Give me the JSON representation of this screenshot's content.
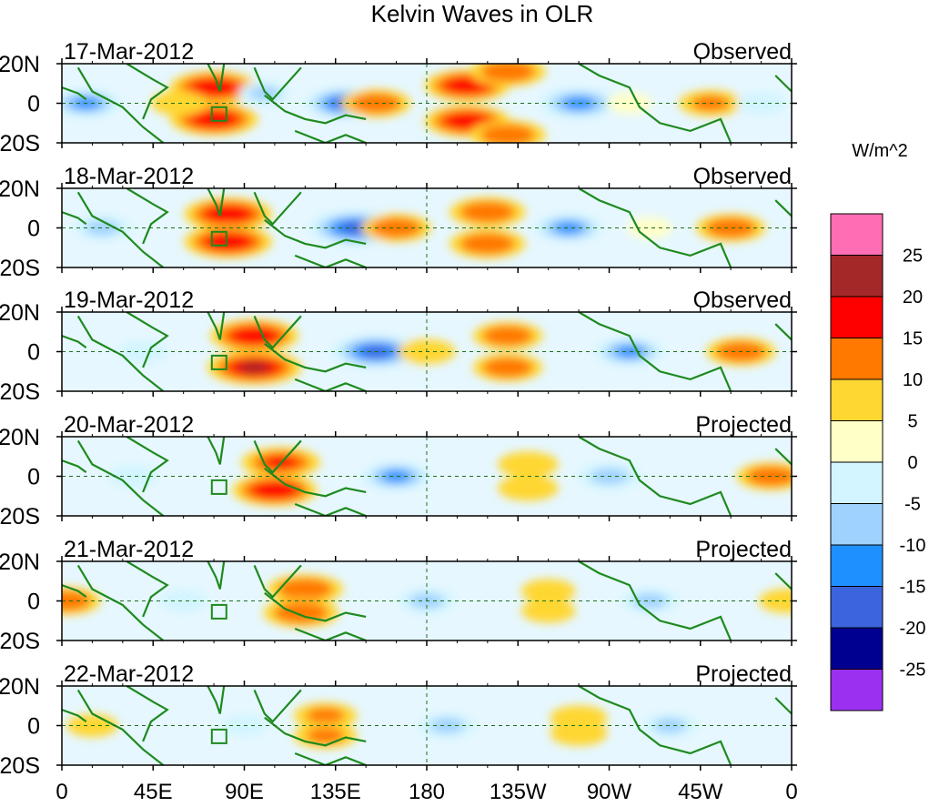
{
  "chart_data": {
    "type": "heatmap",
    "title": "Kelvin Waves in OLR",
    "units": "W/m^2",
    "xlabel": "",
    "ylabel": "",
    "x_ticks": [
      "0",
      "45E",
      "90E",
      "135E",
      "180",
      "135W",
      "90W",
      "45W",
      "0"
    ],
    "y_ticks": [
      "20N",
      "0",
      "20S"
    ],
    "xlim": [
      0,
      360
    ],
    "ylim": [
      -20,
      20
    ],
    "reference_lines": [
      "equator (0)",
      "dateline (180)"
    ],
    "colorbar": {
      "levels": [
        -25,
        -20,
        -15,
        -10,
        -5,
        0,
        5,
        10,
        15,
        20,
        25
      ],
      "tick_labels": [
        "25",
        "20",
        "15",
        "10",
        "5",
        "0",
        "-5",
        "-10",
        "-15",
        "-20",
        "-25"
      ],
      "colors": [
        "#9b30f0",
        "#000090",
        "#3c64dc",
        "#1e90ff",
        "#a0d2ff",
        "#d2f5ff",
        "#ffffc8",
        "#ffd732",
        "#ff7800",
        "#ff0000",
        "#a52828",
        "#ff6eb4"
      ]
    },
    "panels": [
      {
        "date": "17-Mar-2012",
        "status": "Observed",
        "features": [
          {
            "lon": 75,
            "lat": 8,
            "value": 18
          },
          {
            "lon": 75,
            "lat": -8,
            "value": 18
          },
          {
            "lon": 58,
            "lat": 0,
            "value": 8
          },
          {
            "lon": 12,
            "lat": 0,
            "value": -12
          },
          {
            "lon": 100,
            "lat": 5,
            "value": -6
          },
          {
            "lon": 140,
            "lat": 0,
            "value": -16
          },
          {
            "lon": 155,
            "lat": 0,
            "value": 12
          },
          {
            "lon": 200,
            "lat": 9,
            "value": 17
          },
          {
            "lon": 200,
            "lat": -9,
            "value": 17
          },
          {
            "lon": 220,
            "lat": 16,
            "value": 14
          },
          {
            "lon": 220,
            "lat": -16,
            "value": 14
          },
          {
            "lon": 255,
            "lat": 0,
            "value": -15
          },
          {
            "lon": 280,
            "lat": 0,
            "value": 4
          },
          {
            "lon": 320,
            "lat": 0,
            "value": 10
          },
          {
            "lon": 345,
            "lat": 0,
            "value": -5
          }
        ]
      },
      {
        "date": "18-Mar-2012",
        "status": "Observed",
        "features": [
          {
            "lon": 82,
            "lat": 7,
            "value": 18
          },
          {
            "lon": 82,
            "lat": -7,
            "value": 18
          },
          {
            "lon": 20,
            "lat": 0,
            "value": -8
          },
          {
            "lon": 145,
            "lat": 0,
            "value": -20
          },
          {
            "lon": 165,
            "lat": 0,
            "value": 12
          },
          {
            "lon": 210,
            "lat": 8,
            "value": 14
          },
          {
            "lon": 210,
            "lat": -8,
            "value": 14
          },
          {
            "lon": 250,
            "lat": 0,
            "value": -12
          },
          {
            "lon": 290,
            "lat": 0,
            "value": 4
          },
          {
            "lon": 330,
            "lat": 0,
            "value": 12
          }
        ]
      },
      {
        "date": "19-Mar-2012",
        "status": "Observed",
        "features": [
          {
            "lon": 95,
            "lat": 8,
            "value": 18
          },
          {
            "lon": 95,
            "lat": -8,
            "value": 20
          },
          {
            "lon": 40,
            "lat": 0,
            "value": -5
          },
          {
            "lon": 155,
            "lat": 0,
            "value": -18
          },
          {
            "lon": 180,
            "lat": 0,
            "value": 8
          },
          {
            "lon": 220,
            "lat": 8,
            "value": 12
          },
          {
            "lon": 220,
            "lat": -8,
            "value": 12
          },
          {
            "lon": 280,
            "lat": 0,
            "value": -12
          },
          {
            "lon": 335,
            "lat": 0,
            "value": 12
          }
        ]
      },
      {
        "date": "20-Mar-2012",
        "status": "Projected",
        "features": [
          {
            "lon": 108,
            "lat": 7,
            "value": 15
          },
          {
            "lon": 105,
            "lat": -7,
            "value": 17
          },
          {
            "lon": 35,
            "lat": 0,
            "value": -5
          },
          {
            "lon": 165,
            "lat": 0,
            "value": -12
          },
          {
            "lon": 230,
            "lat": 6,
            "value": 9
          },
          {
            "lon": 230,
            "lat": -6,
            "value": 9
          },
          {
            "lon": 270,
            "lat": 0,
            "value": -10
          },
          {
            "lon": 350,
            "lat": 0,
            "value": 12
          }
        ]
      },
      {
        "date": "21-Mar-2012",
        "status": "Projected",
        "features": [
          {
            "lon": 120,
            "lat": 6,
            "value": 14
          },
          {
            "lon": 118,
            "lat": -6,
            "value": 14
          },
          {
            "lon": 2,
            "lat": 0,
            "value": 12
          },
          {
            "lon": 60,
            "lat": 0,
            "value": -5
          },
          {
            "lon": 180,
            "lat": 0,
            "value": -8
          },
          {
            "lon": 240,
            "lat": 5,
            "value": 7
          },
          {
            "lon": 240,
            "lat": -5,
            "value": 7
          },
          {
            "lon": 290,
            "lat": 0,
            "value": -8
          },
          {
            "lon": 358,
            "lat": 0,
            "value": 8
          }
        ]
      },
      {
        "date": "22-Mar-2012",
        "status": "Projected",
        "features": [
          {
            "lon": 130,
            "lat": 5,
            "value": 10
          },
          {
            "lon": 130,
            "lat": -5,
            "value": 10
          },
          {
            "lon": 15,
            "lat": 0,
            "value": 6
          },
          {
            "lon": 90,
            "lat": 0,
            "value": -4
          },
          {
            "lon": 190,
            "lat": 0,
            "value": -8
          },
          {
            "lon": 255,
            "lat": 4,
            "value": 8
          },
          {
            "lon": 255,
            "lat": -4,
            "value": 8
          },
          {
            "lon": 300,
            "lat": 0,
            "value": -7
          }
        ]
      }
    ]
  }
}
